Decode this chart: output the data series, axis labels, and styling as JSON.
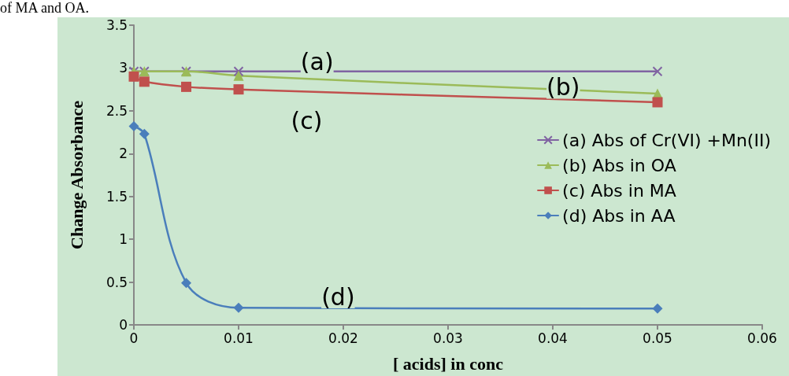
{
  "chart_data": {
    "type": "line",
    "xlabel": "[ acids] in conc",
    "ylabel": "Change Absorbance",
    "x": [
      0,
      0.001,
      0.005,
      0.01,
      0.05
    ],
    "series": [
      {
        "name": "(a) Abs of Cr(VI) +Mn(II)",
        "color": "#8064a2",
        "marker": "cross",
        "values": [
          2.96,
          2.96,
          2.96,
          2.96,
          2.96
        ]
      },
      {
        "name": "(b) Abs in OA",
        "color": "#9bbb59",
        "marker": "triangle",
        "values": [
          2.96,
          2.96,
          2.96,
          2.91,
          2.7
        ]
      },
      {
        "name": "(c) Abs in MA",
        "color": "#c0504d",
        "marker": "square",
        "values": [
          2.9,
          2.84,
          2.78,
          2.75,
          2.6
        ]
      },
      {
        "name": "(d) Abs in AA",
        "color": "#4a7ebb",
        "marker": "diamond",
        "values": [
          2.32,
          2.23,
          0.49,
          0.2,
          0.19
        ]
      }
    ],
    "annotations": [
      "of MA and OA.",
      "(a)",
      "(b)",
      "(c)",
      "(d)"
    ],
    "xlim": [
      0,
      0.06
    ],
    "xticks": [
      0,
      0.01,
      0.02,
      0.03,
      0.04,
      0.05,
      0.06
    ],
    "ylim": [
      0,
      3.5
    ],
    "yticks": [
      0,
      0.5,
      1,
      1.5,
      2,
      2.5,
      3,
      3.5
    ],
    "grid": false,
    "legend": "right",
    "line_style": "solid"
  }
}
